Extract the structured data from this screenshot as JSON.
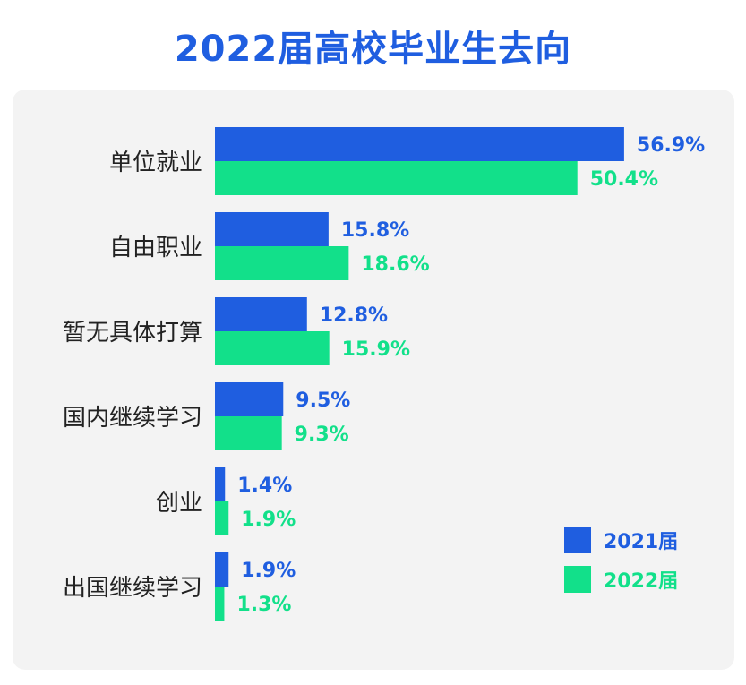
{
  "title": "2022届高校毕业生去向",
  "colors": {
    "series2021": "#1f5ee0",
    "series2022": "#12e08a",
    "title": "#1f5ee0"
  },
  "chart_data": {
    "type": "bar",
    "orientation": "horizontal",
    "title": "2022届高校毕业生去向",
    "categories": [
      "单位就业",
      "自由职业",
      "暂无具体打算",
      "国内继续学习",
      "创业",
      "出国继续学习"
    ],
    "series": [
      {
        "name": "2021届",
        "values": [
          56.9,
          15.8,
          12.8,
          9.5,
          1.4,
          1.9
        ],
        "labels": [
          "56.9%",
          "15.8%",
          "12.8%",
          "9.5%",
          "1.4%",
          "1.9%"
        ]
      },
      {
        "name": "2022届",
        "values": [
          50.4,
          18.6,
          15.9,
          9.3,
          1.9,
          1.3
        ],
        "labels": [
          "50.4%",
          "18.6%",
          "15.9%",
          "9.3%",
          "1.9%",
          "1.3%"
        ]
      }
    ],
    "xlim": [
      0,
      60
    ],
    "legend_position": "bottom-right",
    "grid": false
  }
}
